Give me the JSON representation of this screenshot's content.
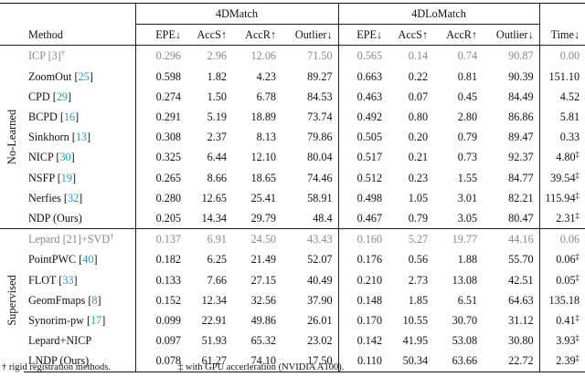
{
  "header": {
    "group1": "4DMatch",
    "group2": "4DLoMatch",
    "col_method": "Method",
    "cols": [
      "EPE↓",
      "AccS↑",
      "AccR↑",
      "Outlier↓",
      "EPE↓",
      "AccS↑",
      "AccR↑",
      "Outlier↓",
      "Time↓"
    ]
  },
  "sections": [
    {
      "label": "No-Learned",
      "rows": [
        {
          "name": "ICP",
          "ref": "3",
          "suffix": "",
          "mark": "†",
          "gray": true,
          "vals": [
            "0.296",
            "2.96",
            "12.06",
            "71.50",
            "0.565",
            "0.14",
            "0.74",
            "90.87",
            "0.00"
          ],
          "time_mark": "",
          "bold": []
        },
        {
          "name": "ZoomOut",
          "ref": "25",
          "suffix": "",
          "mark": "",
          "gray": false,
          "vals": [
            "0.598",
            "1.82",
            "4.23",
            "89.27",
            "0.663",
            "0.22",
            "0.81",
            "90.39",
            "151.10"
          ],
          "time_mark": "",
          "bold": []
        },
        {
          "name": "CPD",
          "ref": "29",
          "suffix": "",
          "mark": "",
          "gray": false,
          "vals": [
            "0.274",
            "1.50",
            "6.78",
            "84.53",
            "0.463",
            "0.07",
            "0.45",
            "84.49",
            "4.52"
          ],
          "time_mark": "",
          "bold": [
            4
          ]
        },
        {
          "name": "BCPD",
          "ref": "16",
          "suffix": "",
          "mark": "",
          "gray": false,
          "vals": [
            "0.291",
            "5.19",
            "18.89",
            "73.74",
            "0.492",
            "0.80",
            "2.80",
            "86.86",
            "5.81"
          ],
          "time_mark": "",
          "bold": []
        },
        {
          "name": "Sinkhorn",
          "ref": "13",
          "suffix": "",
          "mark": "",
          "gray": false,
          "vals": [
            "0.308",
            "2.37",
            "8.13",
            "79.86",
            "0.505",
            "0.20",
            "0.79",
            "89.47",
            "0.33"
          ],
          "time_mark": "",
          "bold": []
        },
        {
          "name": "NICP",
          "ref": "30",
          "suffix": "",
          "mark": "",
          "gray": false,
          "vals": [
            "0.325",
            "6.44",
            "12.10",
            "80.04",
            "0.517",
            "0.21",
            "0.73",
            "92.37",
            "4.80"
          ],
          "time_mark": "‡",
          "bold": []
        },
        {
          "name": "NSFP",
          "ref": "19",
          "suffix": "",
          "mark": "",
          "gray": false,
          "vals": [
            "0.265",
            "8.66",
            "18.65",
            "74.46",
            "0.512",
            "0.23",
            "1.55",
            "84.77",
            "39.54"
          ],
          "time_mark": "‡",
          "bold": []
        },
        {
          "name": "Nerfies",
          "ref": "32",
          "suffix": "",
          "mark": "",
          "gray": false,
          "vals": [
            "0.280",
            "12.65",
            "25.41",
            "58.91",
            "0.498",
            "1.05",
            "3.01",
            "82.21",
            "115.94"
          ],
          "time_mark": "‡",
          "bold": [
            5
          ]
        },
        {
          "name": "NDP (Ours)",
          "ref": "",
          "suffix": "",
          "mark": "",
          "gray": false,
          "vals": [
            "0.205",
            "14.34",
            "29.79",
            "48.4",
            "0.467",
            "0.79",
            "3.05",
            "80.47",
            "2.31"
          ],
          "time_mark": "‡",
          "bold": [
            0,
            1,
            2,
            3,
            6,
            7
          ]
        }
      ]
    },
    {
      "label": "Supervised",
      "rows": [
        {
          "name": "Lepard",
          "ref": "21",
          "suffix": "+SVD",
          "mark": "†",
          "gray": true,
          "vals": [
            "0.137",
            "6.91",
            "24.50",
            "43.43",
            "0.160",
            "5.27",
            "19.77",
            "44.16",
            "0.06"
          ],
          "time_mark": "",
          "bold": []
        },
        {
          "name": "PointPWC",
          "ref": "40",
          "suffix": "",
          "mark": "",
          "gray": false,
          "vals": [
            "0.182",
            "6.25",
            "21.49",
            "52.07",
            "0.176",
            "0.56",
            "1.88",
            "55.70",
            "0.06"
          ],
          "time_mark": "‡",
          "bold": []
        },
        {
          "name": "FLOT",
          "ref": "33",
          "suffix": "",
          "mark": "",
          "gray": false,
          "vals": [
            "0.133",
            "7.66",
            "27.15",
            "40.49",
            "0.210",
            "2.73",
            "13.08",
            "42.51",
            "0.05"
          ],
          "time_mark": "‡",
          "bold": []
        },
        {
          "name": "GeomFmaps",
          "ref": "8",
          "suffix": "",
          "mark": "",
          "gray": false,
          "vals": [
            "0.152",
            "12.34",
            "32.56",
            "37.90",
            "0.148",
            "1.85",
            "6.51",
            "64.63",
            "135.18"
          ],
          "time_mark": "",
          "bold": []
        },
        {
          "name": "Synorim-pw",
          "ref": "17",
          "suffix": "",
          "mark": "",
          "gray": false,
          "vals": [
            "0.099",
            "22.91",
            "49.86",
            "26.01",
            "0.170",
            "10.55",
            "30.70",
            "31.12",
            "0.41"
          ],
          "time_mark": "‡",
          "bold": []
        },
        {
          "name": "Lepard+NICP",
          "ref": "",
          "suffix": "",
          "mark": "",
          "gray": false,
          "vals": [
            "0.097",
            "51.93",
            "65.32",
            "23.02",
            "0.142",
            "41.95",
            "53.08",
            "30.80",
            "3.93"
          ],
          "time_mark": "‡",
          "bold": []
        },
        {
          "name": "LNDP (Ours)",
          "ref": "",
          "suffix": "",
          "mark": "",
          "gray": false,
          "vals": [
            "0.078",
            "61.27",
            "74.10",
            "17.50",
            "0.110",
            "50.34",
            "63.66",
            "22.72",
            "2.39"
          ],
          "time_mark": "‡",
          "bold": [
            0,
            1,
            2,
            3,
            4,
            5,
            6,
            7
          ]
        }
      ]
    }
  ],
  "footnotes": {
    "note1": "† rigid registration methods.",
    "note2": "‡ with GPU accerleration (NVIDIA A100)."
  }
}
